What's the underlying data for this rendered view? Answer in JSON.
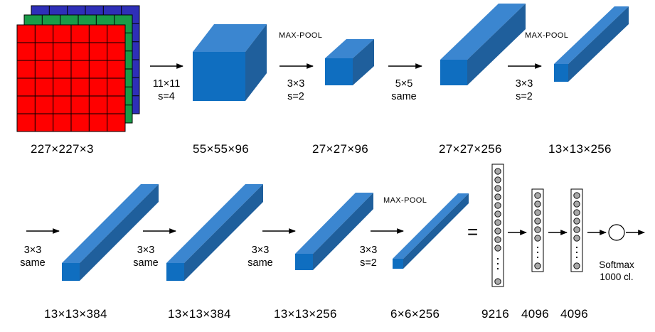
{
  "layer_labels": {
    "input": "227×227×3",
    "conv1": "55×55×96",
    "pool1": "27×27×96",
    "conv2": "27×27×256",
    "pool2": "13×13×256",
    "conv3": "13×13×384",
    "conv4": "13×13×384",
    "conv5": "13×13×256",
    "pool3": "6×6×256",
    "fc_flat": "9216",
    "fc1": "4096",
    "fc2": "4096"
  },
  "operations": {
    "conv1_kernel": "11×11",
    "conv1_stride": "s=4",
    "pool1_title": "MAX-POOL",
    "pool1_kernel": "3×3",
    "pool1_stride": "s=2",
    "conv2_kernel": "5×5",
    "conv2_pad": "same",
    "pool2_title": "MAX-POOL",
    "pool2_kernel": "3×3",
    "pool2_stride": "s=2",
    "conv3_kernel": "3×3",
    "conv3_pad": "same",
    "conv4_kernel": "3×3",
    "conv4_pad": "same",
    "conv5_kernel": "3×3",
    "conv5_pad": "same",
    "pool3_title": "MAX-POOL",
    "pool3_kernel": "3×3",
    "pool3_stride": "s=2",
    "equals_sign": "=",
    "softmax_line1": "Softmax",
    "softmax_line2": "1000 cl."
  },
  "colors": {
    "input_red": "#ff0000",
    "input_green": "#1a9c48",
    "input_blue": "#2e2fb8",
    "block_front": "#0f6ec0",
    "block_top": "#3b86d0",
    "block_side": "#1f5f9c"
  }
}
